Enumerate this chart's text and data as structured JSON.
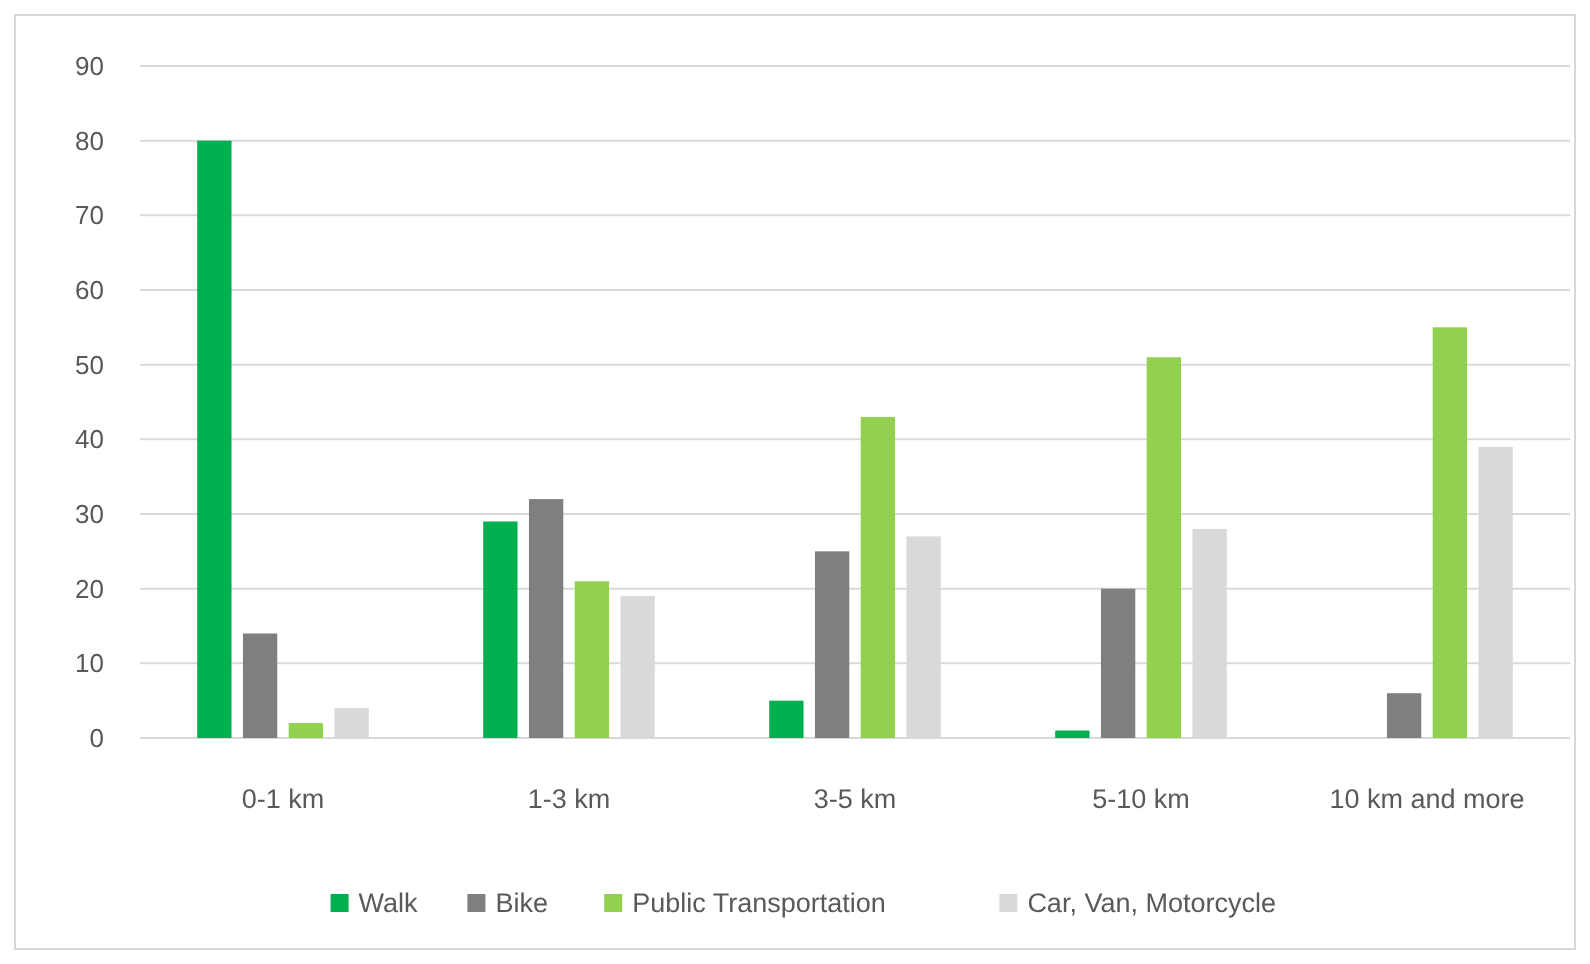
{
  "chart_data": {
    "type": "bar",
    "categories": [
      "0-1 km",
      "1-3 km",
      "3-5 km",
      "5-10 km",
      "10 km and more"
    ],
    "series": [
      {
        "name": "Walk",
        "color": "#00b050",
        "values": [
          80,
          29,
          5,
          1,
          0
        ]
      },
      {
        "name": "Bike",
        "color": "#7f7f7f",
        "values": [
          14,
          32,
          25,
          20,
          6
        ]
      },
      {
        "name": "Public Transportation",
        "color": "#92d050",
        "values": [
          2,
          21,
          43,
          51,
          55
        ]
      },
      {
        "name": "Car, Van, Motorcycle",
        "color": "#d9d9d9",
        "values": [
          4,
          19,
          27,
          28,
          39
        ]
      }
    ],
    "ylim": [
      0,
      90
    ],
    "yticks": [
      0,
      10,
      20,
      30,
      40,
      50,
      60,
      70,
      80,
      90
    ],
    "grid": "y",
    "legend": "bottom"
  }
}
